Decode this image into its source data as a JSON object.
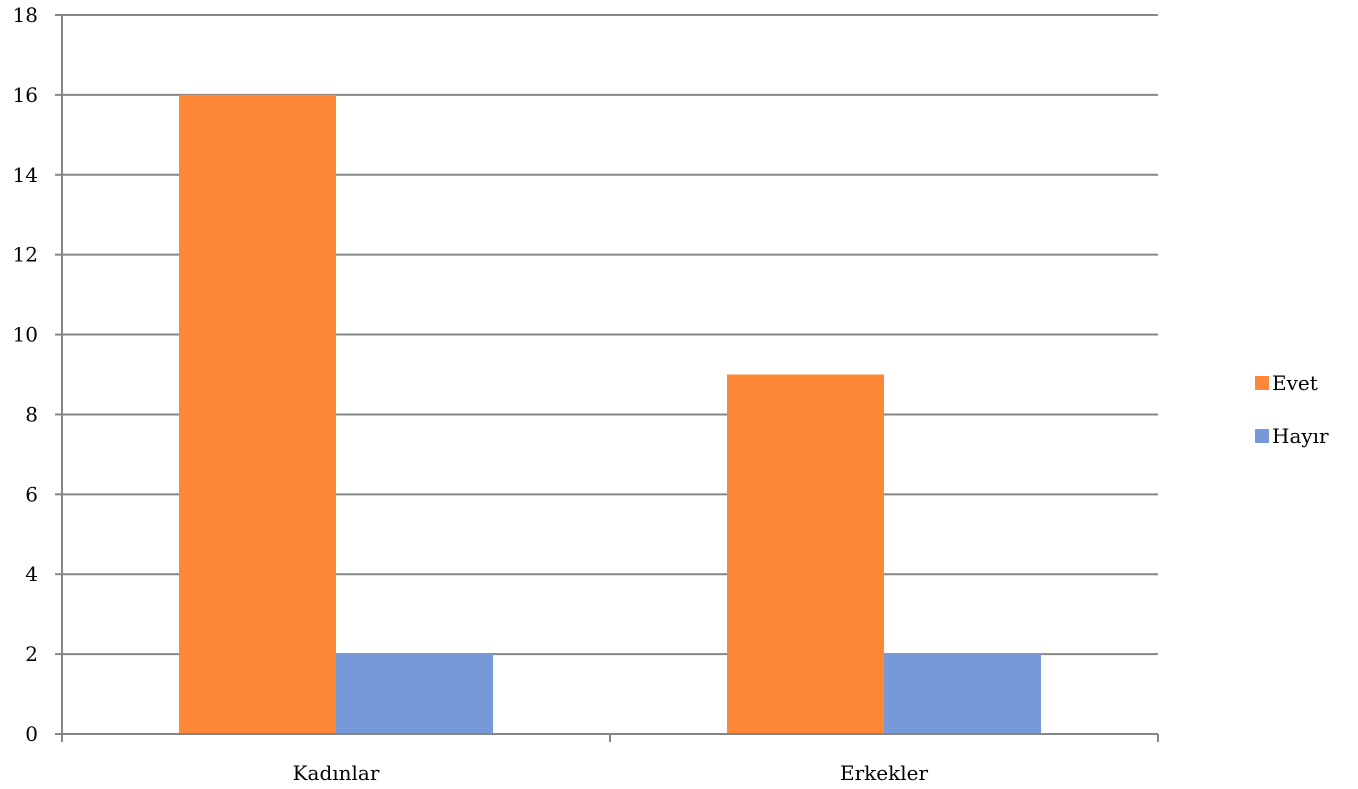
{
  "chart_data": {
    "type": "bar",
    "title": "",
    "xlabel": "",
    "ylabel": "",
    "categories": [
      "Kadınlar",
      "Erkekler"
    ],
    "series": [
      {
        "name": "Evet",
        "values": [
          16,
          9
        ],
        "color": "#FF8838"
      },
      {
        "name": "Hayır",
        "values": [
          2,
          2
        ],
        "color": "#7799D9"
      }
    ],
    "ylim": [
      0,
      18
    ],
    "yticks": [
      "0",
      "2",
      "4",
      "6",
      "8",
      "10",
      "12",
      "14",
      "16",
      "18"
    ],
    "grid": true,
    "legend_position": "right"
  }
}
